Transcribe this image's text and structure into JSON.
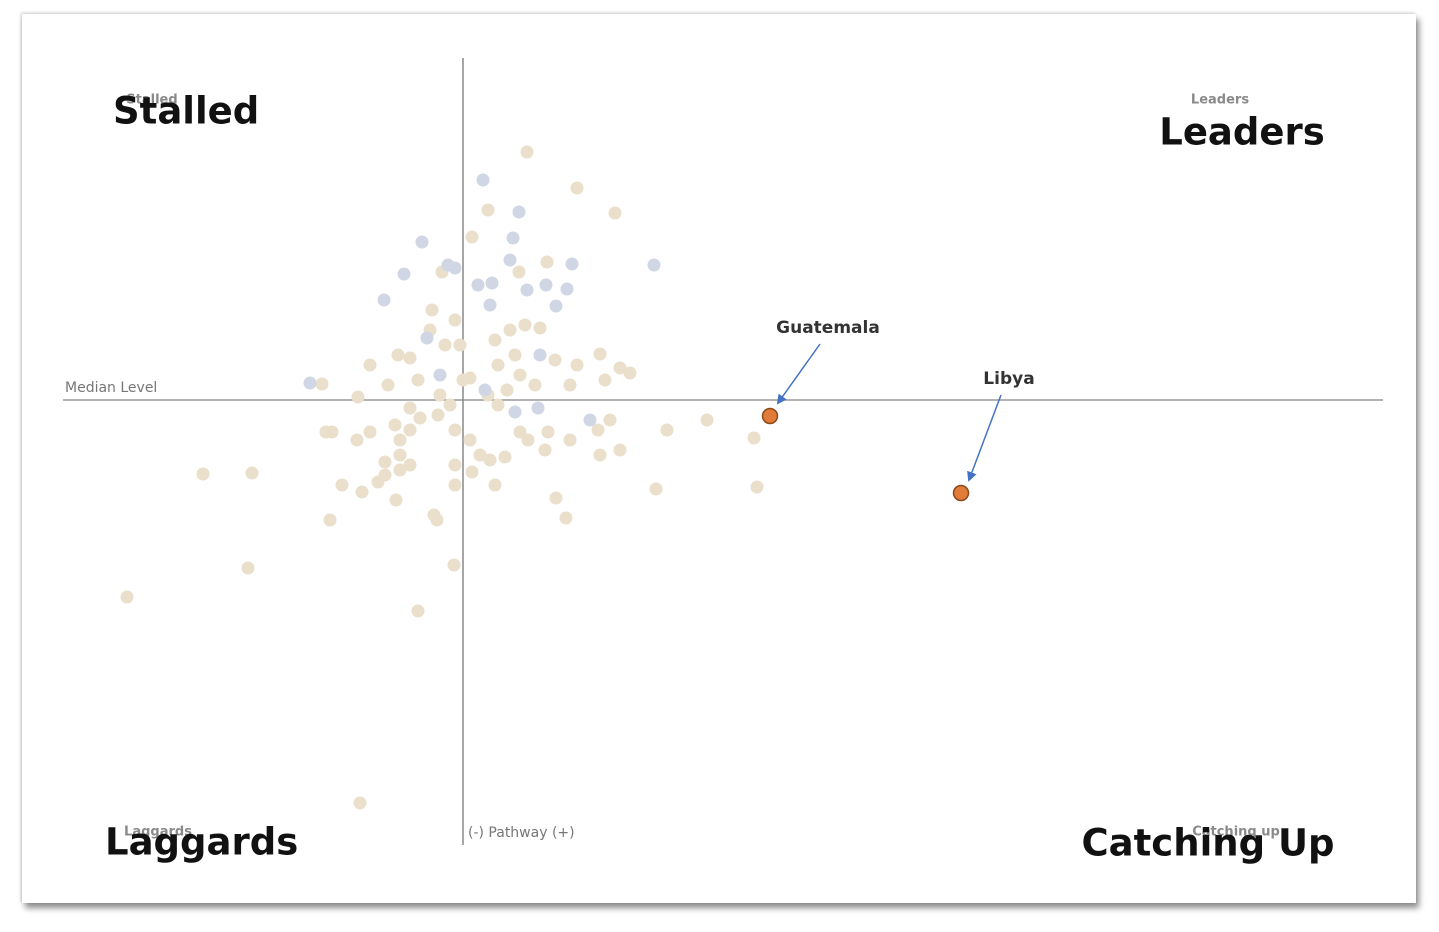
{
  "chart_data": {
    "type": "scatter",
    "xlim": [
      -40,
      92
    ],
    "ylim": [
      -44,
      34
    ],
    "reference_lines": {
      "x": 0,
      "y": 0
    },
    "x_label": "(-) Pathway (+)",
    "y_label": "Median Level",
    "quadrants": [
      {
        "label": "Stalled",
        "small_label": "Stalled"
      },
      {
        "label": "Leaders",
        "small_label": "Leaders"
      },
      {
        "label": "Laggards",
        "small_label": "Laggards"
      },
      {
        "label": "Catching Up",
        "small_label": "Catching up"
      }
    ],
    "series": [
      {
        "color": "#eadfcb",
        "x": [
          6.4,
          11.4,
          15.2,
          2.5,
          0.9,
          -2.1,
          8.4,
          5.6,
          11.4,
          -9.3,
          -6.5,
          -5.3,
          -3.3,
          -0.8,
          -3.1,
          0,
          0.7,
          -2.3,
          -4.5,
          -7.5,
          -10.5,
          -13.7,
          -13.1,
          -10.6,
          -9.3,
          -6.8,
          -6.3,
          -5.3,
          -4.3,
          -2.5,
          -1.3,
          2.5,
          3.5,
          4.4,
          5.7,
          7.2,
          9.2,
          10.7,
          13.7,
          15.7,
          16.7,
          14.2,
          14.7,
          13.5,
          15.7,
          13.7,
          10.7,
          8.5,
          6.5,
          8.2,
          5.7,
          4.2,
          2.7,
          0.9,
          1.7,
          3.2,
          -0.8,
          -0.8,
          -5.3,
          -6.3,
          -7.8,
          -8.5,
          -10.1,
          -12.1,
          -13.3,
          -6.7,
          -2.9,
          -2.6,
          9.3,
          10.3,
          19.3,
          29.4,
          29.1,
          24.4,
          20.4,
          -26,
          -21.1,
          -21.5,
          -33.6,
          -4.5,
          -0.9,
          -10.3,
          -14.1,
          3.2,
          4.7,
          6.2,
          7.7,
          5.2,
          3.5,
          -0.3,
          -1.8,
          -5.3,
          -6.3,
          -7.8,
          0.7,
          -0.8
        ],
        "y": [
          24.8,
          21.2,
          18.7,
          19,
          16.3,
          12.8,
          13.8,
          12.8,
          3.5,
          3.5,
          4.5,
          4.2,
          7,
          8,
          9,
          2,
          2.2,
          0.5,
          2,
          1.5,
          0.3,
          -3.2,
          -3.2,
          -4,
          -3.2,
          -2.5,
          -4,
          -3,
          -1.8,
          -1.5,
          -0.5,
          0.5,
          -0.5,
          1,
          2.5,
          1.5,
          4,
          1.5,
          4.6,
          3.2,
          2.7,
          2,
          -2,
          -3,
          -5,
          -5.5,
          -4,
          -3.2,
          -4,
          -5,
          -3.2,
          -5.7,
          -6,
          -7.2,
          -5.5,
          -8.5,
          -6.5,
          -8.5,
          -6.5,
          -7,
          -7.5,
          -8.2,
          -9.2,
          -8.5,
          -12,
          -10,
          -11.5,
          -12,
          -9.8,
          -11.8,
          -8.9,
          -8.7,
          -3.8,
          -2,
          -3,
          -7.4,
          -7.3,
          -16.8,
          -19.7,
          -21.1,
          -16.5,
          -40.3,
          1.6,
          6,
          7,
          7.5,
          7.2,
          4.5,
          3.5,
          5.5,
          5.5,
          -0.8,
          -5.5,
          -6.2,
          -4,
          -3
        ]
      },
      {
        "color": "#d0d6e4",
        "x": [
          2,
          5.6,
          5,
          -4.1,
          -5.9,
          -7.9,
          -1.5,
          -0.8,
          1.5,
          2.9,
          4.7,
          6.4,
          8.3,
          10.9,
          10.4,
          9.3,
          2.7,
          -15.3,
          -3.6,
          -2.3,
          2.2,
          7.7,
          12.7,
          7.5,
          5.2,
          19.1
        ],
        "y": [
          22,
          18.8,
          16.2,
          15.8,
          12.6,
          10,
          13.5,
          13.2,
          11.5,
          11.7,
          14,
          11,
          11.5,
          13.6,
          11.1,
          9.4,
          9.5,
          1.7,
          6.2,
          2.5,
          1,
          4.5,
          -2,
          -0.8,
          -1.2,
          13.5
        ]
      },
      {
        "color": "#e07b39",
        "x": [
          30.7,
          49.8
        ],
        "y": [
          -1.6,
          -9.3
        ],
        "labels": [
          "Guatemala",
          "Libya"
        ]
      }
    ]
  }
}
